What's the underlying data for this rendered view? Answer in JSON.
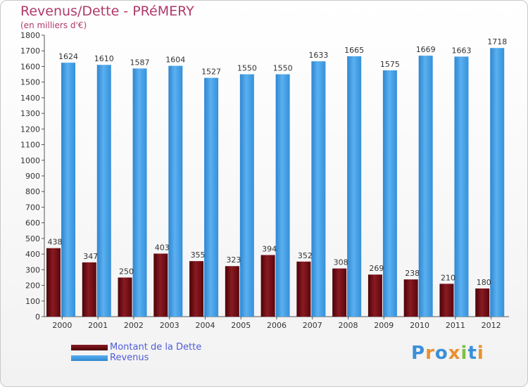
{
  "header": {
    "title": "Revenus/Dette - PRéMERY",
    "subtitle": "(en milliers d'€)"
  },
  "logo": {
    "text": "Proxiti",
    "letter_colors": [
      "#3b8fd9",
      "#e8912e",
      "#3b8fd9",
      "#e8912e",
      "#7cc243",
      "#3b8fd9",
      "#e8912e"
    ]
  },
  "colors": {
    "dette": "#6b0a12",
    "revenus": "#3e9ee6",
    "grid": "#d0d0d0",
    "axis": "#555555"
  },
  "chart_data": {
    "type": "bar",
    "title": "Revenus/Dette - PRéMERY",
    "subtitle": "(en milliers d'€)",
    "categories": [
      "2000",
      "2001",
      "2002",
      "2003",
      "2004",
      "2005",
      "2006",
      "2007",
      "2008",
      "2009",
      "2010",
      "2011",
      "2012"
    ],
    "series": [
      {
        "name": "Montant de la Dette",
        "values": [
          438,
          347,
          250,
          403,
          355,
          323,
          394,
          352,
          308,
          269,
          238,
          210,
          180
        ]
      },
      {
        "name": "Revenus",
        "values": [
          1624,
          1610,
          1587,
          1604,
          1527,
          1550,
          1550,
          1633,
          1665,
          1575,
          1669,
          1663,
          1718
        ]
      }
    ],
    "ylim": [
      0,
      1800
    ],
    "yticks": [
      0,
      100,
      200,
      300,
      400,
      500,
      600,
      700,
      800,
      900,
      1000,
      1100,
      1200,
      1300,
      1400,
      1500,
      1600,
      1700,
      1800
    ],
    "grid": false,
    "legend": "bottom-left"
  }
}
